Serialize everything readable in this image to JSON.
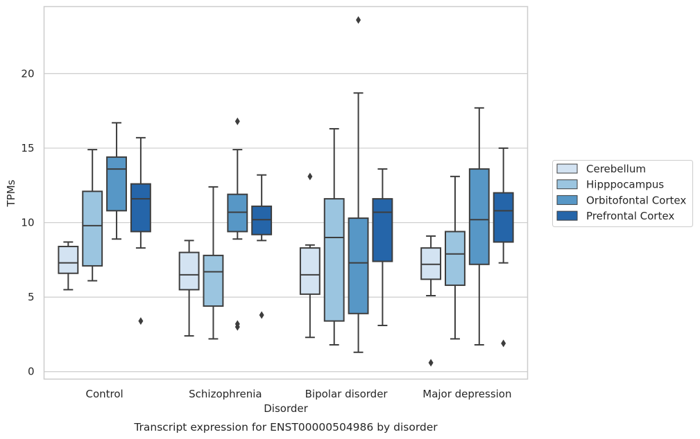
{
  "chart_data": {
    "type": "box",
    "caption": "Transcript expression for ENST00000504986 by disorder",
    "xlabel": "Disorder",
    "ylabel": "TPMs",
    "ylim": [
      -0.5,
      24.5
    ],
    "yticks": [
      0,
      5,
      10,
      15,
      20
    ],
    "grid": true,
    "legend_position": "right",
    "categories": [
      "Control",
      "Schizophrenia",
      "Bipolar disorder",
      "Major depression"
    ],
    "series": [
      {
        "name": "Cerebellum",
        "color": "#d3e3f2",
        "boxes": [
          {
            "whisker_low": 5.5,
            "q1": 6.6,
            "median": 7.3,
            "q3": 8.4,
            "whisker_high": 8.7,
            "outliers": []
          },
          {
            "whisker_low": 2.4,
            "q1": 5.5,
            "median": 6.5,
            "q3": 8.0,
            "whisker_high": 8.8,
            "outliers": []
          },
          {
            "whisker_low": 2.3,
            "q1": 5.2,
            "median": 6.5,
            "q3": 8.3,
            "whisker_high": 8.5,
            "outliers": [
              13.1
            ]
          },
          {
            "whisker_low": 5.1,
            "q1": 6.2,
            "median": 7.2,
            "q3": 8.3,
            "whisker_high": 9.1,
            "outliers": [
              0.6
            ]
          }
        ]
      },
      {
        "name": "Hipppocampus",
        "color": "#9bc5e0",
        "boxes": [
          {
            "whisker_low": 6.1,
            "q1": 7.1,
            "median": 9.8,
            "q3": 12.1,
            "whisker_high": 14.9,
            "outliers": []
          },
          {
            "whisker_low": 2.2,
            "q1": 4.4,
            "median": 6.7,
            "q3": 7.8,
            "whisker_high": 12.4,
            "outliers": []
          },
          {
            "whisker_low": 1.8,
            "q1": 3.4,
            "median": 9.0,
            "q3": 11.6,
            "whisker_high": 16.3,
            "outliers": []
          },
          {
            "whisker_low": 2.2,
            "q1": 5.8,
            "median": 7.9,
            "q3": 9.4,
            "whisker_high": 13.1,
            "outliers": []
          }
        ]
      },
      {
        "name": "Orbitofontal Cortex",
        "color": "#5797c6",
        "boxes": [
          {
            "whisker_low": 8.9,
            "q1": 10.8,
            "median": 13.6,
            "q3": 14.4,
            "whisker_high": 16.7,
            "outliers": []
          },
          {
            "whisker_low": 8.9,
            "q1": 9.4,
            "median": 10.7,
            "q3": 11.9,
            "whisker_high": 14.9,
            "outliers": [
              3.0,
              3.2,
              16.8
            ]
          },
          {
            "whisker_low": 1.3,
            "q1": 3.9,
            "median": 7.3,
            "q3": 10.3,
            "whisker_high": 18.7,
            "outliers": [
              23.6
            ]
          },
          {
            "whisker_low": 1.8,
            "q1": 7.2,
            "median": 10.2,
            "q3": 13.6,
            "whisker_high": 17.7,
            "outliers": []
          }
        ]
      },
      {
        "name": "Prefrontal Cortex",
        "color": "#2565a9",
        "boxes": [
          {
            "whisker_low": 8.3,
            "q1": 9.4,
            "median": 11.6,
            "q3": 12.6,
            "whisker_high": 15.7,
            "outliers": [
              3.4
            ]
          },
          {
            "whisker_low": 8.8,
            "q1": 9.2,
            "median": 10.2,
            "q3": 11.1,
            "whisker_high": 13.2,
            "outliers": [
              3.8
            ]
          },
          {
            "whisker_low": 3.1,
            "q1": 7.4,
            "median": 10.7,
            "q3": 11.6,
            "whisker_high": 13.6,
            "outliers": []
          },
          {
            "whisker_low": 7.3,
            "q1": 8.7,
            "median": 10.8,
            "q3": 12.0,
            "whisker_high": 15.0,
            "outliers": [
              1.9
            ]
          }
        ]
      }
    ]
  }
}
